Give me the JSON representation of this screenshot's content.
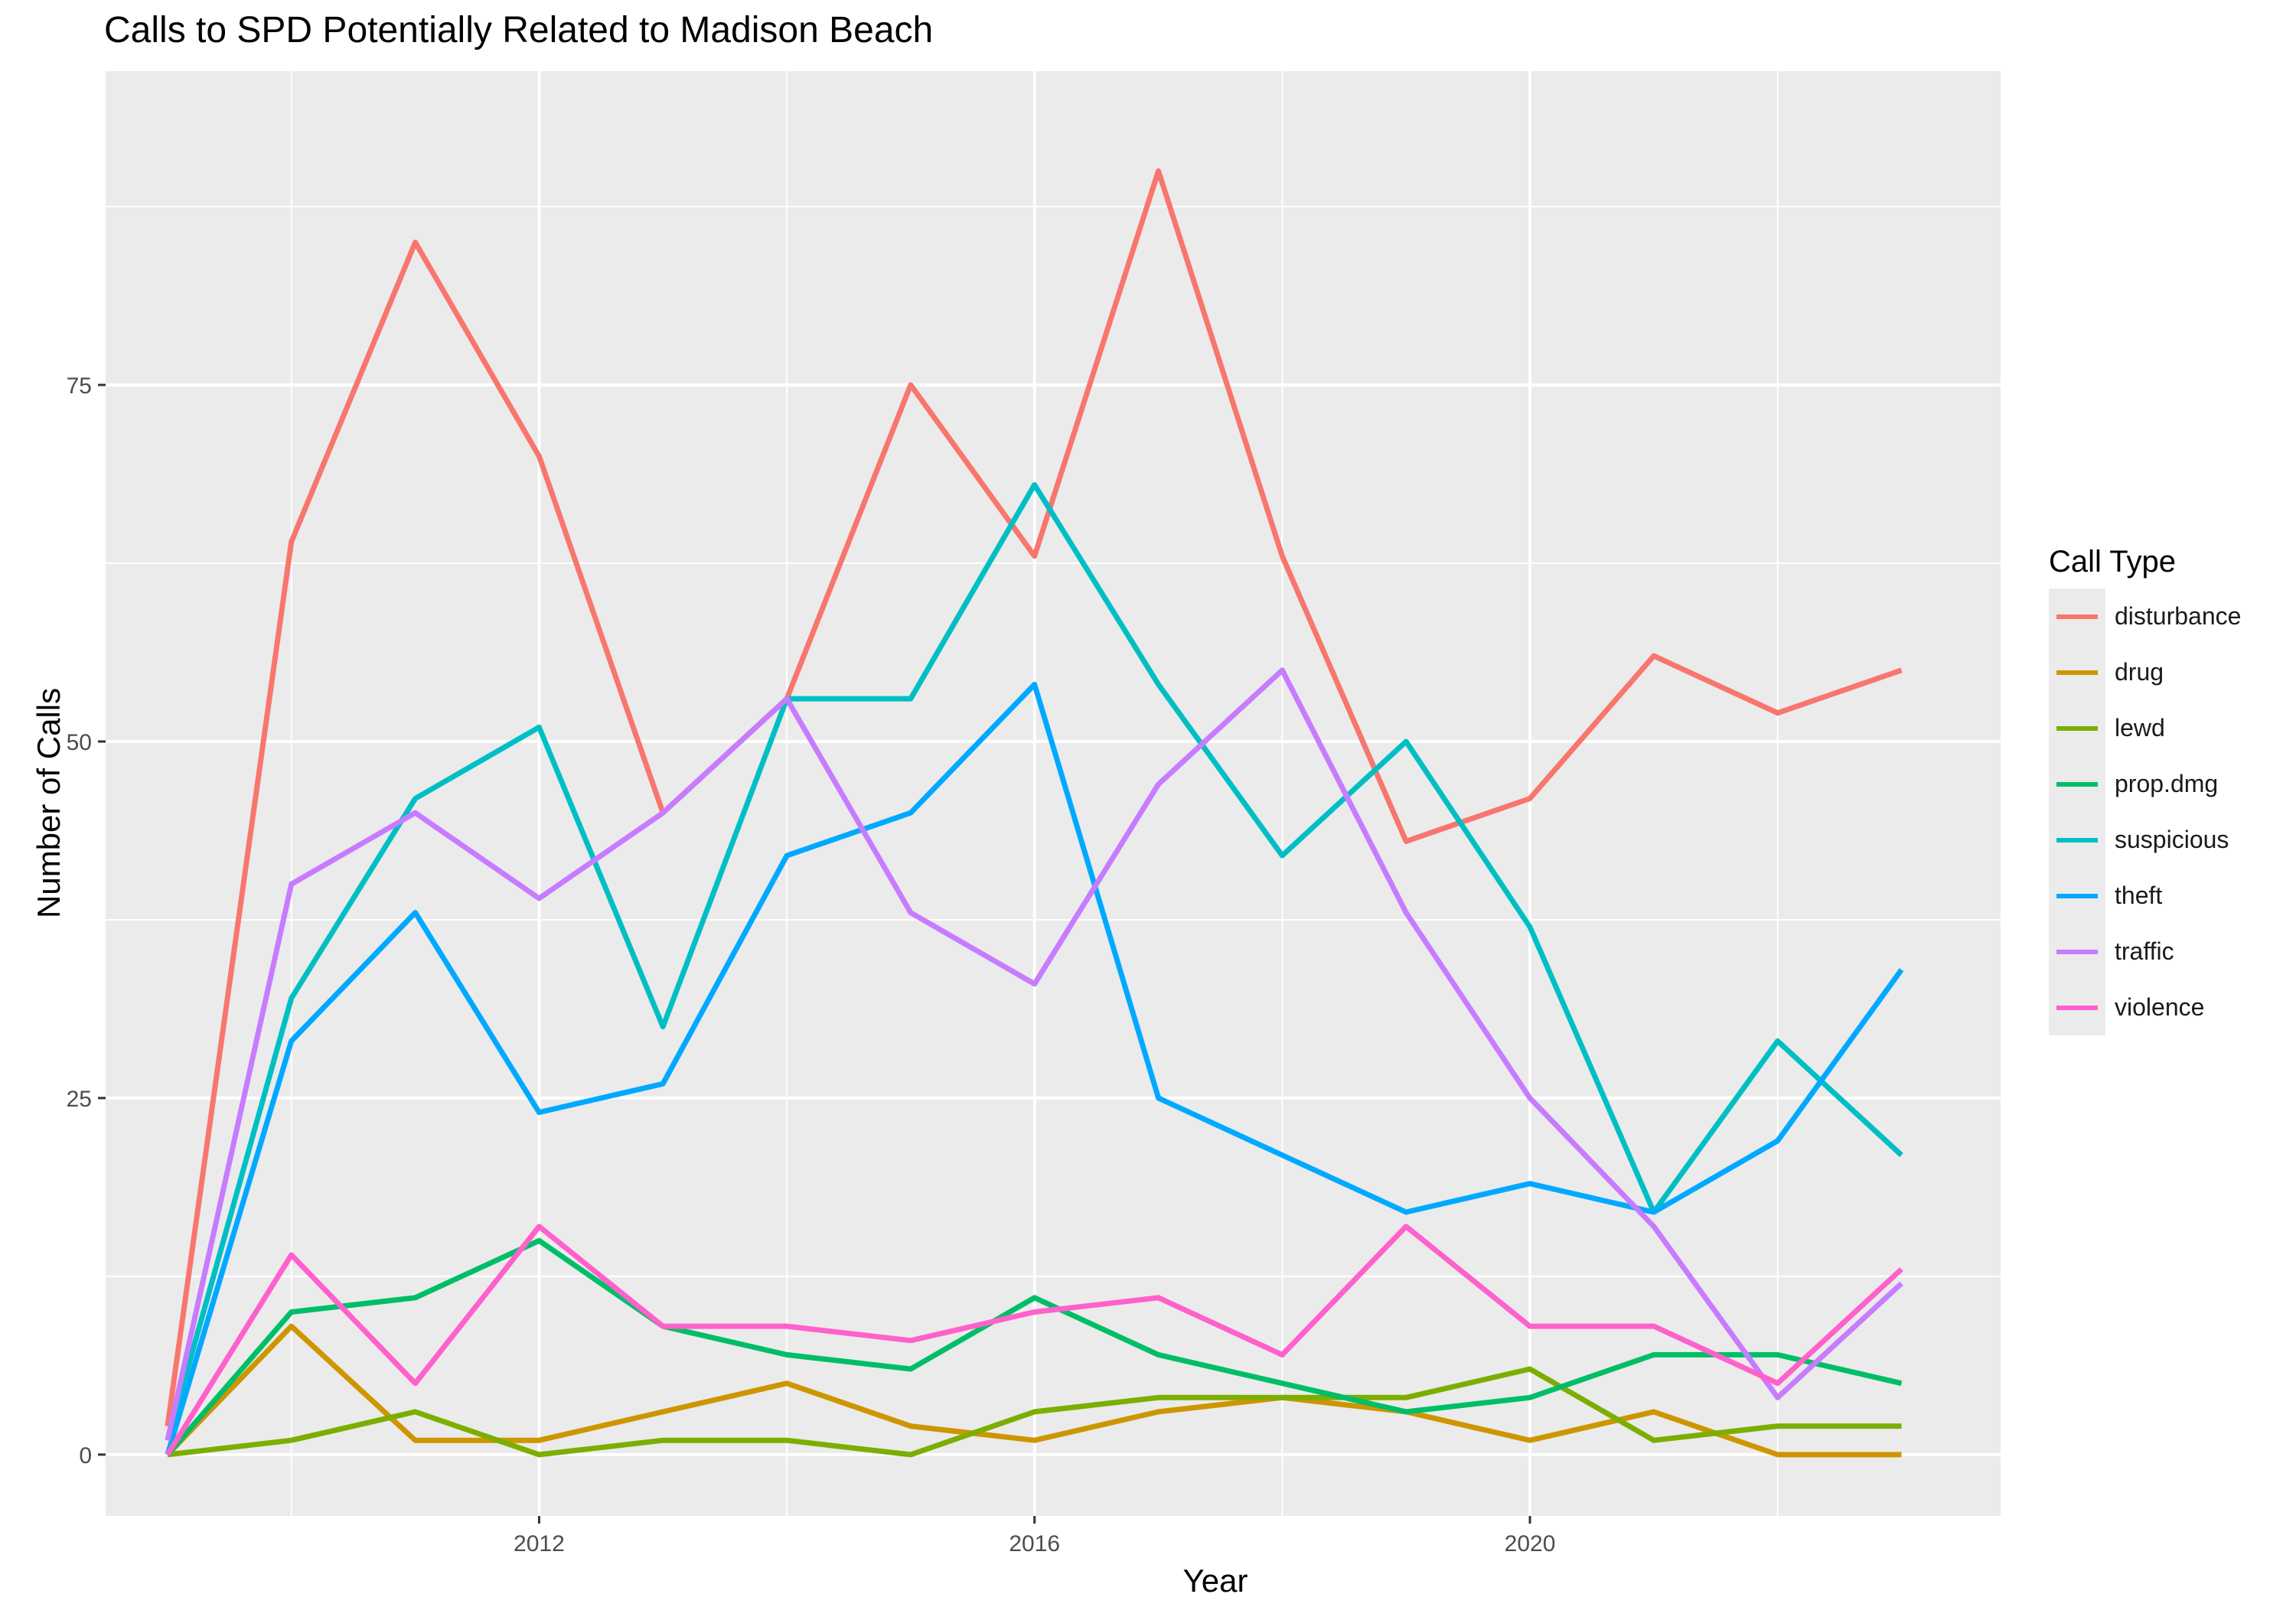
{
  "chart_data": {
    "type": "line",
    "title": "Calls to SPD Potentially Related to Madison Beach",
    "xlabel": "Year",
    "ylabel": "Number of Calls",
    "legend_title": "Call Type",
    "legend_position": "right",
    "grid": true,
    "x": [
      2009,
      2010,
      2011,
      2012,
      2013,
      2014,
      2015,
      2016,
      2017,
      2018,
      2019,
      2020,
      2021,
      2022,
      2023
    ],
    "xlim": [
      2008.5,
      2023.8
    ],
    "ylim": [
      -4.3,
      97
    ],
    "x_ticks": [
      2012,
      2016,
      2020
    ],
    "x_tick_labels": [
      "2012",
      "2016",
      "2020"
    ],
    "y_ticks": [
      0,
      25,
      50,
      75
    ],
    "y_tick_labels": [
      "0",
      "25",
      "50",
      "75"
    ],
    "series": [
      {
        "name": "disturbance",
        "color": "#F8766D",
        "values": [
          2,
          64,
          85,
          70,
          45,
          53,
          75,
          63,
          90,
          63,
          43,
          46,
          56,
          52,
          55
        ]
      },
      {
        "name": "drug",
        "color": "#CD9600",
        "values": [
          0,
          9,
          1,
          1,
          3,
          5,
          2,
          1,
          3,
          4,
          3,
          1,
          3,
          0,
          0
        ]
      },
      {
        "name": "lewd",
        "color": "#7CAE00",
        "values": [
          0,
          1,
          3,
          0,
          1,
          1,
          0,
          3,
          4,
          4,
          4,
          6,
          1,
          2,
          2
        ]
      },
      {
        "name": "prop.dmg",
        "color": "#00BE67",
        "values": [
          0,
          10,
          11,
          15,
          9,
          7,
          6,
          11,
          7,
          5,
          3,
          4,
          7,
          7,
          5
        ]
      },
      {
        "name": "suspicious",
        "color": "#00BFC4",
        "values": [
          1,
          32,
          46,
          51,
          30,
          53,
          53,
          68,
          54,
          42,
          50,
          37,
          17,
          29,
          21
        ]
      },
      {
        "name": "theft",
        "color": "#00A9FF",
        "values": [
          0,
          29,
          38,
          24,
          26,
          42,
          45,
          54,
          25,
          21,
          17,
          19,
          17,
          22,
          34
        ]
      },
      {
        "name": "traffic",
        "color": "#C77CFF",
        "values": [
          1,
          40,
          45,
          39,
          45,
          53,
          38,
          33,
          47,
          55,
          38,
          25,
          16,
          4,
          12
        ]
      },
      {
        "name": "violence",
        "color": "#FF61CC",
        "values": [
          0,
          14,
          5,
          16,
          9,
          9,
          8,
          10,
          11,
          7,
          16,
          9,
          9,
          5,
          13
        ]
      }
    ]
  }
}
